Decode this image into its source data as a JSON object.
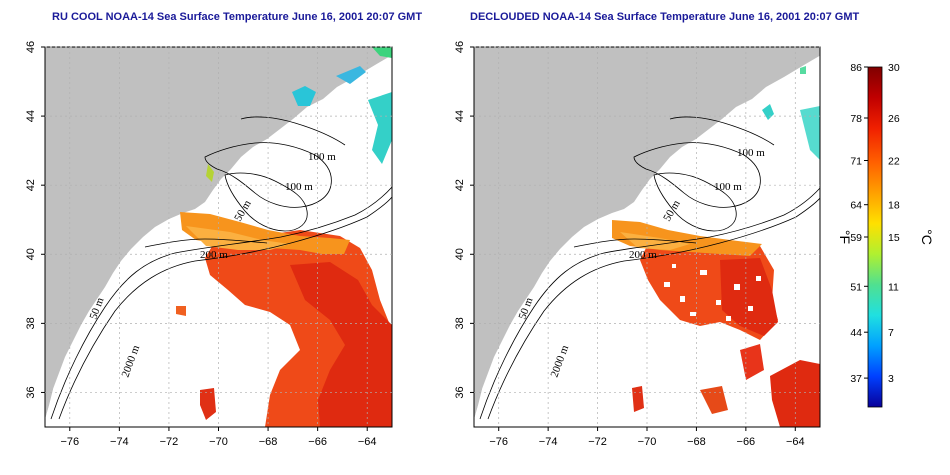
{
  "panels": [
    {
      "id": "left",
      "title": "RU COOL NOAA-14 Sea Surface Temperature June 16, 2001 20:07 GMT"
    },
    {
      "id": "right",
      "title": "DECLOUDED NOAA-14 Sea Surface Temperature June 16, 2001 20:07 GMT"
    }
  ],
  "axes": {
    "lon_ticks": [
      -76,
      -74,
      -72,
      -70,
      -68,
      -66,
      -64
    ],
    "lat_ticks": [
      36,
      38,
      40,
      42,
      44,
      46
    ],
    "lon_range": [
      -77,
      -63
    ],
    "lat_range": [
      35,
      46
    ]
  },
  "contour_labels": [
    "100 m",
    "100 m",
    "50 m",
    "200 m",
    "50 m",
    "2000 m"
  ],
  "colorbar": {
    "fahrenheit_ticks": [
      "86",
      "78",
      "71",
      "64",
      "59",
      "51",
      "44",
      "37"
    ],
    "celsius_ticks": [
      "30",
      "26",
      "22",
      "18",
      "15",
      "11",
      "7",
      "3"
    ],
    "unit_f": "°F",
    "unit_c": "°C",
    "colors": [
      "#08009a",
      "#0040ff",
      "#00a0ff",
      "#20e0e0",
      "#50e090",
      "#b0f030",
      "#ffe000",
      "#ffa000",
      "#ff6000",
      "#f02000",
      "#c00000",
      "#800000"
    ]
  },
  "colors": {
    "land": "#c0c0c0",
    "water": "#ffffff",
    "grid": "#b0b0b0",
    "title": "#1a1a99"
  }
}
